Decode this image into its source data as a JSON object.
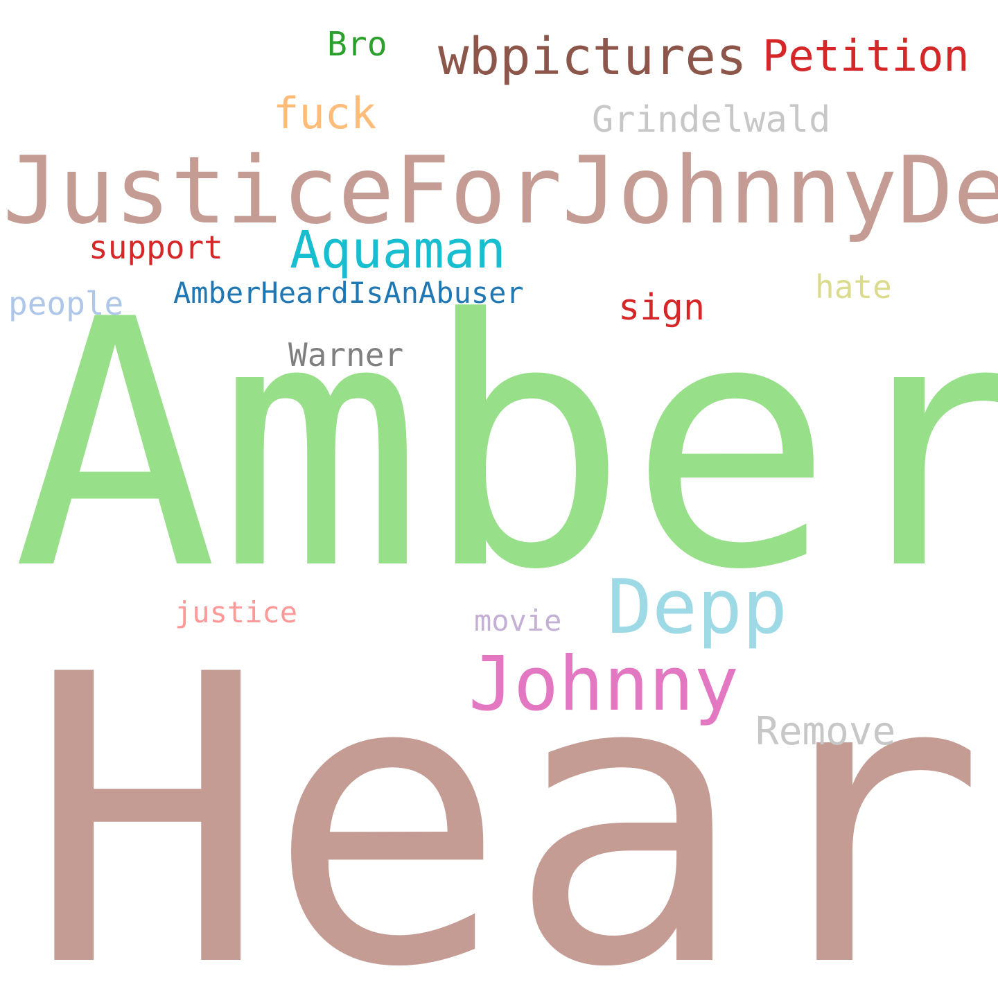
{
  "words": [
    {
      "id": "bro",
      "text": "Bro",
      "color": "#2ca02c"
    },
    {
      "id": "wbpictures",
      "text": "wbpictures",
      "color": "#8c564b"
    },
    {
      "id": "petition",
      "text": "Petition",
      "color": "#d62728"
    },
    {
      "id": "fuck",
      "text": "fuck",
      "color": "#ffbb78"
    },
    {
      "id": "grindelwald",
      "text": "Grindelwald",
      "color": "#c7c7c7"
    },
    {
      "id": "justicefor",
      "text": "JusticeForJohnnyDepp",
      "color": "#c49c94"
    },
    {
      "id": "aquaman",
      "text": "Aquaman",
      "color": "#17becf"
    },
    {
      "id": "support",
      "text": "support",
      "color": "#d62728"
    },
    {
      "id": "people",
      "text": "people",
      "color": "#aec7e8"
    },
    {
      "id": "amberheardis",
      "text": "AmberHeardIsAnAbuser",
      "color": "#1f77b4"
    },
    {
      "id": "hate",
      "text": "hate",
      "color": "#dbdb8d"
    },
    {
      "id": "sign",
      "text": "sign",
      "color": "#d62728"
    },
    {
      "id": "warner",
      "text": "Warner",
      "color": "#7f7f7f"
    },
    {
      "id": "amber",
      "text": "Amber",
      "color": "#98df8a"
    },
    {
      "id": "depp",
      "text": "Depp",
      "color": "#9edae5"
    },
    {
      "id": "justice",
      "text": "justice",
      "color": "#ff9896"
    },
    {
      "id": "movie",
      "text": "movie",
      "color": "#c5b0d5"
    },
    {
      "id": "johnny",
      "text": "Johnny",
      "color": "#e377c2"
    },
    {
      "id": "remove",
      "text": "Remove",
      "color": "#c7c7c7"
    },
    {
      "id": "heard",
      "text": "Heard",
      "color": "#c49c94"
    }
  ]
}
